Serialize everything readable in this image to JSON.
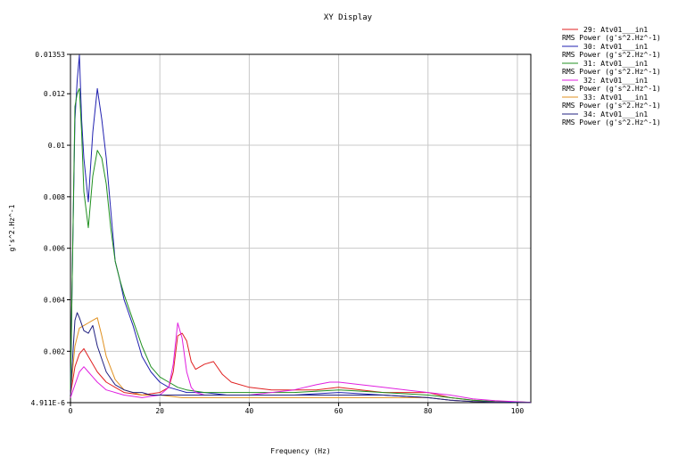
{
  "chart_data": {
    "type": "line",
    "title": "XY Display",
    "xlabel": "Frequency (Hz)",
    "ylabel": "g's^2.Hz^-1",
    "xlim": [
      0,
      103
    ],
    "ylim": [
      4.911e-06,
      0.01353
    ],
    "x_ticks": [
      "0",
      "20",
      "40",
      "60",
      "80",
      "100"
    ],
    "x_tick_values": [
      0,
      20,
      40,
      60,
      80,
      100
    ],
    "y_ticks": [
      "4.911E-6",
      "0.002",
      "0.004",
      "0.006",
      "0.008",
      "0.01",
      "0.012",
      "0.01353"
    ],
    "y_tick_values": [
      4.911e-06,
      0.002,
      0.004,
      0.006,
      0.008,
      0.01,
      0.012,
      0.01353
    ],
    "grid": true,
    "legend_position": "top-right",
    "series": [
      {
        "name": "29: Atv01___in1",
        "unit": "RMS Power (g's^2.Hz^-1)",
        "color": "#e02020",
        "x": [
          0,
          1,
          2,
          3,
          4,
          5,
          6,
          8,
          10,
          12,
          14,
          16,
          18,
          20,
          22,
          23,
          24,
          25,
          26,
          27,
          28,
          30,
          32,
          34,
          36,
          40,
          45,
          50,
          55,
          60,
          65,
          70,
          75,
          80,
          85,
          90,
          95,
          100,
          103
        ],
        "y": [
          0.0003,
          0.0014,
          0.0019,
          0.0021,
          0.0018,
          0.0015,
          0.0012,
          0.0008,
          0.0006,
          0.0004,
          0.00035,
          0.0003,
          0.00035,
          0.0004,
          0.0006,
          0.0012,
          0.0026,
          0.0027,
          0.0024,
          0.0016,
          0.0013,
          0.0015,
          0.0016,
          0.0011,
          0.0008,
          0.0006,
          0.0005,
          0.0005,
          0.0005,
          0.0006,
          0.0005,
          0.0004,
          0.0004,
          0.0004,
          0.0002,
          0.0001,
          5e-05,
          3e-05,
          2e-05
        ]
      },
      {
        "name": "30: Atv01___in1",
        "unit": "RMS Power (g's^2.Hz^-1)",
        "color": "#2020b0",
        "x": [
          0,
          0.5,
          1,
          1.5,
          2,
          2.5,
          3,
          4,
          5,
          6,
          7,
          8,
          9,
          10,
          11,
          12,
          14,
          16,
          18,
          20,
          22,
          24,
          26,
          30,
          35,
          40,
          50,
          60,
          70,
          80,
          85,
          90,
          95,
          100,
          103
        ],
        "y": [
          0.0005,
          0.006,
          0.011,
          0.0125,
          0.0135,
          0.011,
          0.0095,
          0.0078,
          0.0105,
          0.0122,
          0.011,
          0.0095,
          0.0075,
          0.0055,
          0.0048,
          0.004,
          0.003,
          0.0018,
          0.0012,
          0.0008,
          0.0006,
          0.0005,
          0.0004,
          0.0004,
          0.0003,
          0.0003,
          0.0003,
          0.0004,
          0.0003,
          0.0002,
          0.0001,
          5e-05,
          3e-05,
          2e-05,
          1e-05
        ]
      },
      {
        "name": "31: Atv01___in1",
        "unit": "RMS Power (g's^2.Hz^-1)",
        "color": "#209020",
        "x": [
          0,
          0.5,
          1,
          1.5,
          2,
          2.5,
          3,
          4,
          5,
          6,
          7,
          8,
          9,
          10,
          11,
          12,
          14,
          16,
          18,
          20,
          22,
          24,
          26,
          30,
          35,
          40,
          50,
          60,
          70,
          80,
          85,
          90,
          95,
          100,
          103
        ],
        "y": [
          0.0005,
          0.006,
          0.0115,
          0.012,
          0.0122,
          0.0105,
          0.0082,
          0.0068,
          0.0088,
          0.0098,
          0.0095,
          0.0085,
          0.0068,
          0.0055,
          0.0048,
          0.0042,
          0.0032,
          0.0022,
          0.0014,
          0.001,
          0.0008,
          0.0006,
          0.0005,
          0.0004,
          0.0004,
          0.0004,
          0.0004,
          0.0005,
          0.0004,
          0.0003,
          0.0002,
          0.0001,
          5e-05,
          3e-05,
          2e-05
        ]
      },
      {
        "name": "32: Atv01___in1",
        "unit": "RMS Power (g's^2.Hz^-1)",
        "color": "#e020e0",
        "x": [
          0,
          1,
          2,
          3,
          4,
          5,
          6,
          8,
          10,
          12,
          14,
          16,
          18,
          20,
          22,
          23,
          24,
          25,
          26,
          27,
          28,
          30,
          35,
          40,
          45,
          50,
          55,
          58,
          60,
          65,
          70,
          75,
          80,
          85,
          90,
          95,
          100,
          103
        ],
        "y": [
          0.0002,
          0.0007,
          0.0012,
          0.0014,
          0.0012,
          0.001,
          0.0008,
          0.0005,
          0.0004,
          0.0003,
          0.00025,
          0.0002,
          0.00025,
          0.0003,
          0.0006,
          0.0015,
          0.0031,
          0.0025,
          0.0012,
          0.0006,
          0.0004,
          0.0003,
          0.0003,
          0.0003,
          0.0004,
          0.0005,
          0.0007,
          0.0008,
          0.0008,
          0.0007,
          0.0006,
          0.0005,
          0.0004,
          0.0003,
          0.00015,
          8e-05,
          4e-05,
          2e-05
        ]
      },
      {
        "name": "33: Atv01___in1",
        "unit": "RMS Power (g's^2.Hz^-1)",
        "color": "#e09020",
        "x": [
          0,
          0.5,
          1,
          2,
          3,
          4,
          5,
          6,
          7,
          8,
          10,
          12,
          14,
          16,
          18,
          20,
          25,
          30,
          40,
          50,
          60,
          70,
          80,
          85,
          90,
          95,
          100,
          103
        ],
        "y": [
          0.0003,
          0.0013,
          0.0022,
          0.0029,
          0.003,
          0.0031,
          0.0032,
          0.0033,
          0.0026,
          0.0018,
          0.0009,
          0.0005,
          0.0004,
          0.0003,
          0.0003,
          0.0003,
          0.0002,
          0.0002,
          0.0002,
          0.0002,
          0.0002,
          0.0002,
          0.0002,
          0.0001,
          5e-05,
          3e-05,
          2e-05,
          1e-05
        ]
      },
      {
        "name": "34: Atv01___in1",
        "unit": "RMS Power (g's^2.Hz^-1)",
        "color": "#202080",
        "x": [
          0,
          0.5,
          1,
          1.5,
          2,
          3,
          4,
          5,
          6,
          8,
          10,
          12,
          14,
          16,
          18,
          20,
          25,
          30,
          40,
          50,
          60,
          70,
          80,
          85,
          90,
          95,
          100,
          103
        ],
        "y": [
          0.0003,
          0.0018,
          0.0032,
          0.0035,
          0.0033,
          0.0028,
          0.0027,
          0.003,
          0.0022,
          0.0012,
          0.0007,
          0.0005,
          0.0004,
          0.0004,
          0.0003,
          0.0003,
          0.0003,
          0.0003,
          0.0003,
          0.0003,
          0.0003,
          0.0003,
          0.0002,
          0.0001,
          5e-05,
          3e-05,
          2e-05,
          1e-05
        ]
      }
    ]
  }
}
